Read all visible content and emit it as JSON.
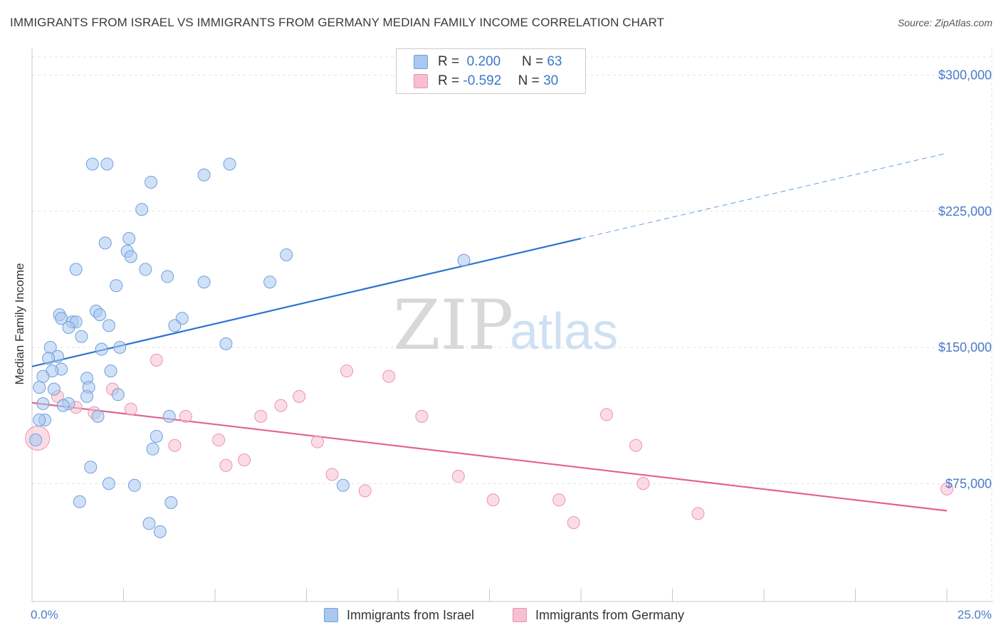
{
  "title": "IMMIGRANTS FROM ISRAEL VS IMMIGRANTS FROM GERMANY MEDIAN FAMILY INCOME CORRELATION CHART",
  "source": "Source: ZipAtlas.com",
  "watermark": {
    "zip": "ZIP",
    "atlas": "atlas"
  },
  "legend": {
    "israel": {
      "r_label": "R =",
      "r_value": "0.200",
      "n_label": "N =",
      "n_value": "63"
    },
    "germany": {
      "r_label": "R =",
      "r_value": "-0.592",
      "n_label": "N =",
      "n_value": "30"
    }
  },
  "bottom_legend": {
    "israel": "Immigrants from Israel",
    "germany": "Immigrants from Germany"
  },
  "colors": {
    "israel_fill": "#a9c8f0",
    "israel_stroke": "#6f9fdd",
    "israel_line": "#2d74d0",
    "germany_fill": "#f7bfd0",
    "germany_stroke": "#ec93b0",
    "germany_line": "#e2628f",
    "tick_text": "#4a7cc7"
  },
  "chart_data": {
    "type": "scatter",
    "title": "IMMIGRANTS FROM ISRAEL VS IMMIGRANTS FROM GERMANY MEDIAN FAMILY INCOME CORRELATION CHART",
    "xlabel": "",
    "ylabel": "Median Family Income",
    "xlim": [
      0,
      25
    ],
    "ylim": [
      10000,
      310000
    ],
    "x_tick_labels": [
      {
        "value": 0,
        "label": "0.0%"
      },
      {
        "value": 25,
        "label": "25.0%"
      }
    ],
    "y_ticks": [
      {
        "value": 75000,
        "label": "$75,000"
      },
      {
        "value": 150000,
        "label": "$150,000"
      },
      {
        "value": 225000,
        "label": "$225,000"
      },
      {
        "value": 300000,
        "label": "$300,000"
      }
    ],
    "series": [
      {
        "name": "Immigrants from Israel",
        "points": [
          [
            1.65,
            251000
          ],
          [
            2.05,
            251000
          ],
          [
            5.4,
            251000
          ],
          [
            4.7,
            245000
          ],
          [
            3.25,
            241000
          ],
          [
            3.0,
            226000
          ],
          [
            2.0,
            207500
          ],
          [
            2.65,
            210000
          ],
          [
            2.6,
            203000
          ],
          [
            2.7,
            200000
          ],
          [
            6.95,
            201000
          ],
          [
            11.8,
            198000
          ],
          [
            1.2,
            193000
          ],
          [
            3.1,
            193000
          ],
          [
            3.7,
            189000
          ],
          [
            4.7,
            186000
          ],
          [
            6.5,
            186000
          ],
          [
            2.3,
            184000
          ],
          [
            1.75,
            170000
          ],
          [
            1.85,
            168000
          ],
          [
            0.75,
            168000
          ],
          [
            0.8,
            166000
          ],
          [
            4.1,
            166000
          ],
          [
            1.1,
            164000
          ],
          [
            1.2,
            164000
          ],
          [
            2.1,
            162000
          ],
          [
            3.9,
            162000
          ],
          [
            1.0,
            161000
          ],
          [
            1.35,
            156000
          ],
          [
            5.3,
            152000
          ],
          [
            2.4,
            150000
          ],
          [
            1.9,
            149000
          ],
          [
            0.5,
            150000
          ],
          [
            0.7,
            145000
          ],
          [
            0.45,
            144000
          ],
          [
            0.8,
            138000
          ],
          [
            0.55,
            137000
          ],
          [
            2.15,
            137000
          ],
          [
            0.3,
            134000
          ],
          [
            1.5,
            133000
          ],
          [
            0.2,
            128000
          ],
          [
            1.55,
            128000
          ],
          [
            0.6,
            127000
          ],
          [
            2.35,
            124000
          ],
          [
            1.5,
            123000
          ],
          [
            1.0,
            119000
          ],
          [
            0.3,
            119000
          ],
          [
            0.85,
            118000
          ],
          [
            1.8,
            112000
          ],
          [
            3.75,
            112000
          ],
          [
            0.35,
            110000
          ],
          [
            0.2,
            110000
          ],
          [
            0.1,
            99000
          ],
          [
            3.4,
            101000
          ],
          [
            3.3,
            94000
          ],
          [
            1.6,
            84000
          ],
          [
            2.1,
            75000
          ],
          [
            2.8,
            74000
          ],
          [
            8.5,
            74000
          ],
          [
            1.3,
            65000
          ],
          [
            3.8,
            64500
          ],
          [
            3.2,
            53000
          ],
          [
            3.5,
            48500
          ]
        ]
      },
      {
        "name": "Immigrants from Germany",
        "points": [
          [
            0.15,
            100000
          ],
          [
            3.4,
            143000
          ],
          [
            8.6,
            137000
          ],
          [
            9.75,
            134000
          ],
          [
            2.2,
            127000
          ],
          [
            7.3,
            123000
          ],
          [
            0.7,
            123000
          ],
          [
            6.8,
            118000
          ],
          [
            1.2,
            117000
          ],
          [
            2.7,
            116000
          ],
          [
            1.7,
            114000
          ],
          [
            4.2,
            112000
          ],
          [
            6.25,
            112000
          ],
          [
            10.65,
            112000
          ],
          [
            15.7,
            113000
          ],
          [
            5.1,
            99000
          ],
          [
            7.8,
            98000
          ],
          [
            3.9,
            96000
          ],
          [
            16.5,
            96000
          ],
          [
            5.8,
            88000
          ],
          [
            5.3,
            85000
          ],
          [
            8.2,
            80000
          ],
          [
            11.65,
            79000
          ],
          [
            16.7,
            75000
          ],
          [
            9.1,
            71000
          ],
          [
            12.6,
            66000
          ],
          [
            14.4,
            66000
          ],
          [
            14.8,
            53500
          ],
          [
            18.2,
            58500
          ],
          [
            25.0,
            72000
          ]
        ]
      }
    ],
    "trendlines": [
      {
        "series": "Immigrants from Israel",
        "x1": 0,
        "y1": 139500,
        "x2": 15.0,
        "y2": 210000,
        "dashed_to_x": 25.0,
        "dashed_to_y": 257000
      },
      {
        "series": "Immigrants from Germany",
        "x1": 0,
        "y1": 119500,
        "x2": 25.0,
        "y2": 60000
      }
    ]
  }
}
